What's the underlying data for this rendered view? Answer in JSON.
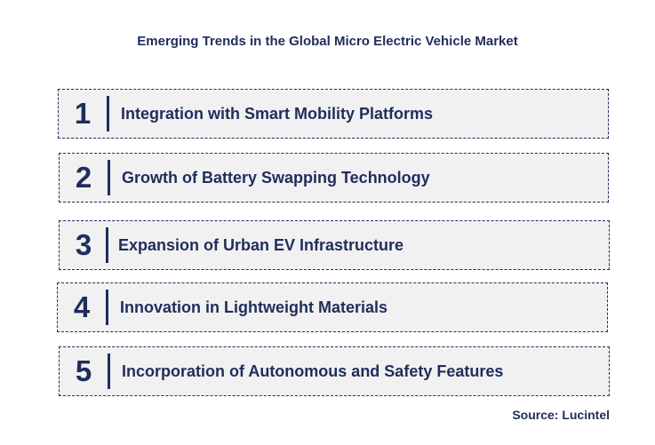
{
  "title": "Emerging Trends in the Global Micro Electric Vehicle Market",
  "trends": [
    {
      "number": "1",
      "label": "Integration with Smart Mobility Platforms"
    },
    {
      "number": "2",
      "label": "Growth of Battery Swapping Technology"
    },
    {
      "number": "3",
      "label": "Expansion of Urban EV Infrastructure"
    },
    {
      "number": "4",
      "label": "Innovation in Lightweight Materials"
    },
    {
      "number": "5",
      "label": "Incorporation of Autonomous and Safety Features"
    }
  ],
  "source": "Source: Lucintel",
  "colors": {
    "accent": "#1f2d5c",
    "box_background": "#f1f1f1"
  }
}
